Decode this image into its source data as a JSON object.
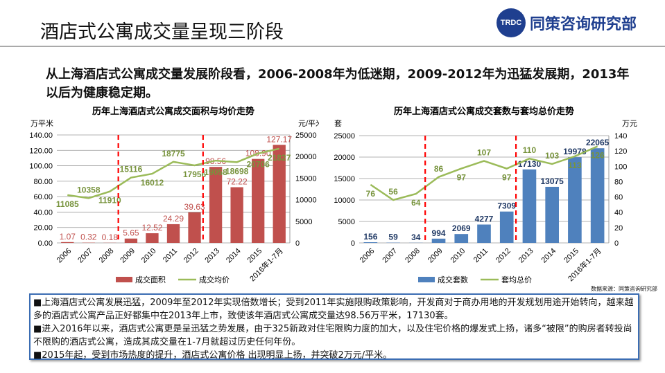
{
  "title": "酒店式公寓成交量呈现三阶段",
  "logo": {
    "mark": "TRDC",
    "name": "同策咨询研究部"
  },
  "lead": "从上海酒店式公寓成交量发展阶段看，2006-2008年为低迷期，2009-2012年为迅猛发展期，2013年以后为健康稳定期。",
  "source": "数据来源：同策咨询研究部",
  "notes": [
    "■上海酒店式公寓发展迅猛，2009年至2012年实现倍数增长；受到2011年实施限购政策影响，开发商对于商办用地的开发规划用途开始转向，越来越多的酒店式公寓产品正好都集中在2013年上市，致使该年酒店式公寓成交量达98.56万平米，17130套。",
    "■进入2016年以来，酒店式公寓更是呈迅猛之势发展，由于325新政对住宅限购力度的加大，以及住宅价格的爆发式上扬，诸多“被限”的购房者转投尚不限购的酒店式公寓，造成其成交量在1-7月就超过历史任何年份。",
    "■2015年起，受到市场热度的提升，酒店式公寓价格 出现明显上扬，并突破2万元/平米。"
  ],
  "chart_data": [
    {
      "type": "bar+line",
      "title": "历年上海酒店式公寓成交面积与均价走势",
      "categories": [
        "2006",
        "2007",
        "2008",
        "2009",
        "2010",
        "2011",
        "2012",
        "2013",
        "2014",
        "2015",
        "2016年1-7月"
      ],
      "ylabel": "万平米",
      "y2label": "元/平米",
      "ylim": [
        0,
        140
      ],
      "y2lim": [
        0,
        25000
      ],
      "yticks": [
        "0.00",
        "20.00",
        "40.00",
        "60.00",
        "80.00",
        "100.00",
        "120.00",
        "140.00"
      ],
      "y2ticks": [
        "0",
        "5000",
        "10000",
        "15000",
        "20000",
        "25000"
      ],
      "stage_dividers": [
        "2008|2009",
        "2012|2013"
      ],
      "series": [
        {
          "name": "成交面积",
          "type": "bar",
          "axis": "left",
          "color": "#c0504d",
          "values": [
            1.07,
            0.32,
            0.18,
            5.65,
            12.52,
            24.29,
            39.63,
            98.56,
            72.22,
            108.9,
            127.17
          ],
          "labels": [
            "1.07",
            "0.32",
            "0.18",
            "5.65",
            "12.52",
            "24.29",
            "39.63",
            "98.56",
            "72.22",
            "108.90",
            "127.17"
          ]
        },
        {
          "name": "成交均价",
          "type": "line",
          "axis": "right",
          "color": "#9bbb59",
          "values": [
            11085,
            10358,
            11910,
            15116,
            16012,
            18775,
            17956,
            19058,
            18698,
            20706,
            21827
          ]
        }
      ]
    },
    {
      "type": "bar+line",
      "title": "历年上海酒店式公寓成交套数与套均总价走势",
      "categories": [
        "2006",
        "2007",
        "2008",
        "2009",
        "2010",
        "2011",
        "2012",
        "2013",
        "2014",
        "2015",
        "2016年1-7月"
      ],
      "ylabel": "套",
      "y2label": "万元",
      "ylim": [
        0,
        25000
      ],
      "y2lim": [
        0,
        140
      ],
      "yticks": [
        "0",
        "5000",
        "10000",
        "15000",
        "20000",
        "25000"
      ],
      "y2ticks": [
        "0",
        "20",
        "40",
        "60",
        "80",
        "100",
        "120",
        "140"
      ],
      "stage_dividers": [
        "2008|2009",
        "2012|2013"
      ],
      "series": [
        {
          "name": "成交套数",
          "type": "bar",
          "axis": "left",
          "color": "#4f81bd",
          "values": [
            156,
            59,
            34,
            994,
            2069,
            4277,
            7309,
            17130,
            13075,
            19978,
            22065
          ]
        },
        {
          "name": "套均总价",
          "type": "line",
          "axis": "right",
          "color": "#9bbb59",
          "values": [
            76,
            56,
            64,
            86,
            97,
            107,
            97,
            110,
            103,
            113,
            126
          ]
        }
      ]
    }
  ]
}
